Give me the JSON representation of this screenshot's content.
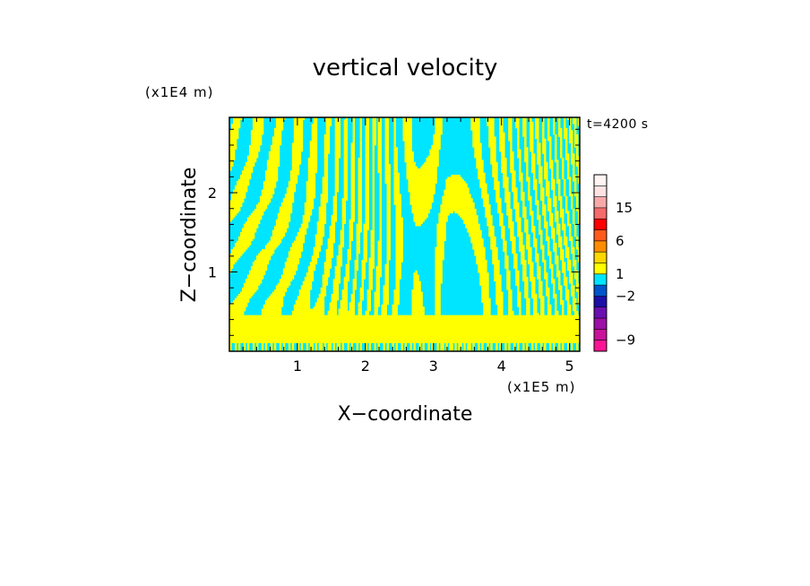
{
  "chart_data": {
    "type": "heatmap",
    "title": "vertical velocity",
    "xlabel": "X−coordinate",
    "ylabel": "Z−coordinate",
    "x_unit": "(x1E5 m)",
    "y_unit": "(x1E4 m)",
    "time_label": "t=4200 s",
    "xlim": [
      0,
      5.15
    ],
    "ylim": [
      0,
      2.95
    ],
    "x_ticks": [
      1,
      2,
      3,
      4,
      5
    ],
    "y_ticks": [
      1,
      2
    ],
    "colorbar": {
      "tick_labels": [
        "15",
        "6",
        "1",
        "−2",
        "−9"
      ],
      "colors": [
        "#ff1493",
        "#c8129a",
        "#9b0fa6",
        "#6a0fb0",
        "#1c0fa8",
        "#0055cc",
        "#00e5ff",
        "#ffff00",
        "#ffd700",
        "#ff8c00",
        "#ff5a1a",
        "#ff0000",
        "#f56a6a",
        "#f7a9a9",
        "#fde2e2",
        "#fff5f3"
      ],
      "label_levels": [
        {
          "label": "15",
          "index": 13
        },
        {
          "label": "6",
          "index": 10
        },
        {
          "label": "1",
          "index": 7
        },
        {
          "label": "−2",
          "index": 5
        },
        {
          "label": "−9",
          "index": 1
        }
      ]
    },
    "field_colors": {
      "negative": "#00e5ff",
      "positive": "#ffff00"
    }
  }
}
